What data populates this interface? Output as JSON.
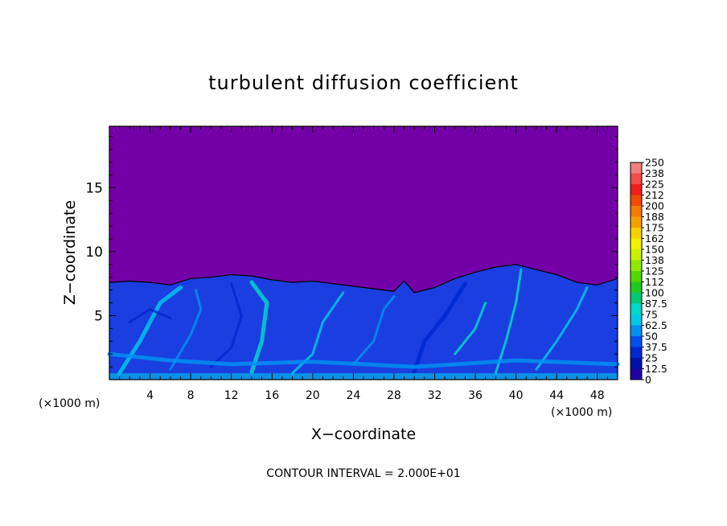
{
  "chart_data": {
    "type": "heatmap",
    "title": "turbulent diffusion coefficient",
    "xlabel": "X−coordinate",
    "ylabel": "Z−coordinate",
    "x_unit_left": "(×1000 m)",
    "x_unit_right": "(×1000 m)",
    "footer": "CONTOUR INTERVAL = 2.000E+01",
    "xlim": [
      0,
      50
    ],
    "ylim": [
      0,
      19.8
    ],
    "x_ticks": [
      4,
      8,
      12,
      16,
      20,
      24,
      28,
      32,
      36,
      40,
      44,
      48
    ],
    "y_ticks": [
      5,
      10,
      15
    ],
    "field_top_profile": [
      [
        0,
        7.6
      ],
      [
        2,
        7.7
      ],
      [
        4,
        7.6
      ],
      [
        6,
        7.4
      ],
      [
        8,
        7.9
      ],
      [
        10,
        8.0
      ],
      [
        12,
        8.2
      ],
      [
        14,
        8.1
      ],
      [
        16,
        7.8
      ],
      [
        18,
        7.6
      ],
      [
        20,
        7.7
      ],
      [
        22,
        7.5
      ],
      [
        24,
        7.3
      ],
      [
        26,
        7.1
      ],
      [
        28,
        6.9
      ],
      [
        29,
        7.7
      ],
      [
        30,
        6.8
      ],
      [
        32,
        7.2
      ],
      [
        34,
        7.9
      ],
      [
        36,
        8.4
      ],
      [
        38,
        8.8
      ],
      [
        40,
        9.0
      ],
      [
        42,
        8.6
      ],
      [
        44,
        8.2
      ],
      [
        46,
        7.6
      ],
      [
        48,
        7.4
      ],
      [
        50,
        7.9
      ]
    ],
    "colorbar": {
      "labels": [
        "250",
        "238",
        "225",
        "212",
        "200",
        "188",
        "175",
        "162",
        "150",
        "138",
        "125",
        "112",
        "100",
        "87.5",
        "75",
        "62.5",
        "50",
        "37.5",
        "25",
        "12.5",
        "0"
      ],
      "colors": [
        "#f08080",
        "#f04a4a",
        "#ee1e1e",
        "#f04a00",
        "#f47a00",
        "#f6a000",
        "#f6d000",
        "#f0f000",
        "#c8f000",
        "#90e800",
        "#50d800",
        "#20c820",
        "#00c878",
        "#00d8c8",
        "#00c8e8",
        "#0090f0",
        "#0050f0",
        "#0028d0",
        "#0010a8",
        "#2000a0"
      ],
      "background": "#7300a6"
    }
  }
}
